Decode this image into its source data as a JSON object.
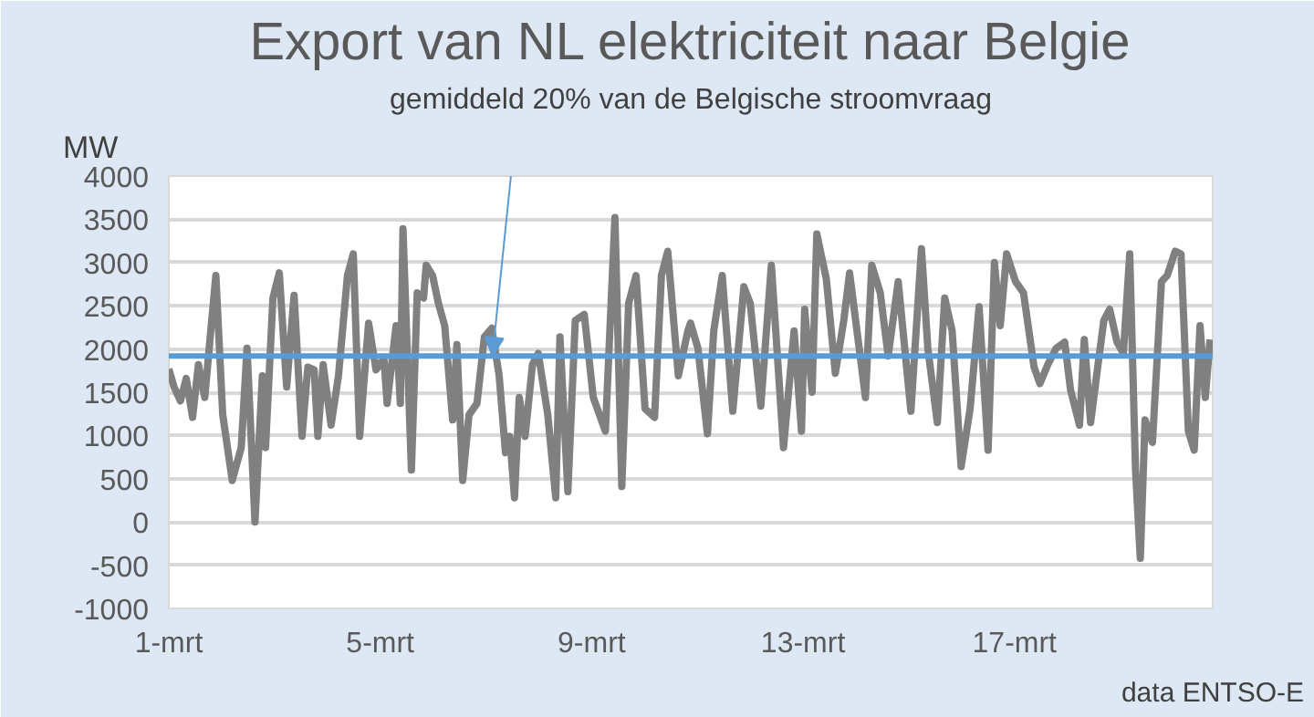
{
  "chart_data": {
    "type": "line",
    "title": "Export van NL elektriciteit naar Belgie",
    "ylabel": "MW",
    "annotations": [
      "gemiddeld 20% van de Belgische stroomvraag",
      "data ENTSO-E"
    ],
    "x": [
      1.0,
      1.1,
      1.22,
      1.33,
      1.45,
      1.56,
      1.68,
      1.77,
      1.89,
      2.02,
      2.2,
      2.37,
      2.48,
      2.63,
      2.77,
      2.83,
      2.97,
      3.09,
      3.23,
      3.37,
      3.52,
      3.63,
      3.75,
      3.82,
      3.92,
      4.07,
      4.21,
      4.38,
      4.49,
      4.61,
      4.78,
      4.92,
      5.07,
      5.13,
      5.3,
      5.38,
      5.43,
      5.59,
      5.7,
      5.82,
      5.87,
      5.99,
      6.1,
      6.22,
      6.37,
      6.45,
      6.56,
      6.68,
      6.83,
      6.97,
      7.11,
      7.25,
      7.37,
      7.45,
      7.54,
      7.63,
      7.74,
      7.88,
      7.99,
      8.17,
      8.32,
      8.4,
      8.55,
      8.69,
      8.86,
      9.03,
      9.26,
      9.44,
      9.57,
      9.7,
      9.84,
      10.01,
      10.19,
      10.32,
      10.44,
      10.64,
      10.82,
      10.87,
      11.01,
      11.19,
      11.31,
      11.47,
      11.67,
      11.88,
      12.0,
      12.2,
      12.4,
      12.63,
      12.83,
      12.97,
      13.03,
      13.17,
      13.26,
      13.44,
      13.61,
      13.77,
      13.88,
      14.18,
      14.3,
      14.46,
      14.61,
      14.8,
      15.04,
      15.24,
      15.36,
      15.54,
      15.68,
      15.82,
      15.99,
      16.16,
      16.33,
      16.5,
      16.62,
      16.73,
      16.85,
      17.02,
      17.17,
      17.37,
      17.48,
      17.63,
      17.79,
      17.95,
      18.06,
      18.23,
      18.32,
      18.44,
      18.58,
      18.69,
      18.8,
      18.94,
      19.06,
      19.18,
      19.29,
      19.38,
      19.47,
      19.61,
      19.78,
      19.89,
      20.04,
      20.15,
      20.29,
      20.4,
      20.51,
      20.61,
      20.7
    ],
    "series": [
      {
        "color": "#808080",
        "values": [
          1770,
          1560,
          1400,
          1660,
          1210,
          1820,
          1440,
          2050,
          2850,
          1240,
          480,
          860,
          2010,
          0,
          1690,
          860,
          2590,
          2880,
          1560,
          2620,
          990,
          1790,
          1760,
          990,
          1820,
          1120,
          1690,
          2850,
          3100,
          990,
          2300,
          1760,
          1890,
          1370,
          2270,
          1370,
          3390,
          600,
          2650,
          2590,
          2970,
          2850,
          2530,
          2270,
          1180,
          2050,
          480,
          1240,
          1370,
          2140,
          2240,
          1690,
          800,
          990,
          280,
          1440,
          990,
          1820,
          1950,
          1240,
          280,
          2140,
          350,
          2330,
          2400,
          1440,
          1050,
          3520,
          410,
          2530,
          2850,
          1310,
          1210,
          2850,
          3130,
          1690,
          2210,
          2300,
          2010,
          1020,
          2210,
          2850,
          1280,
          2720,
          2530,
          1340,
          2970,
          860,
          2210,
          1050,
          2460,
          1500,
          3330,
          2810,
          1720,
          2330,
          2880,
          1440,
          2970,
          2650,
          1920,
          2780,
          1280,
          3160,
          2010,
          1150,
          2590,
          2210,
          640,
          1310,
          2490,
          830,
          3000,
          2270,
          3100,
          2780,
          2650,
          1790,
          1600,
          1820,
          2010,
          2080,
          1530,
          1120,
          2110,
          1150,
          1820,
          2330,
          2460,
          2080,
          1950,
          3100,
          600,
          -420,
          1180,
          920,
          2780,
          2850,
          3130,
          3100,
          1050,
          830,
          2270,
          1440,
          2110
        ]
      }
    ],
    "xlim": [
      1,
      20.75
    ],
    "xticks": [
      {
        "value": 1,
        "label": "1-mrt"
      },
      {
        "value": 5,
        "label": "5-mrt"
      },
      {
        "value": 9,
        "label": "9-mrt"
      },
      {
        "value": 13,
        "label": "13-mrt"
      },
      {
        "value": 17,
        "label": "17-mrt"
      }
    ],
    "ylim": [
      -1000,
      4000
    ],
    "yticks": [
      -1000,
      -500,
      0,
      500,
      1000,
      1500,
      2000,
      2500,
      3000,
      3500,
      4000
    ],
    "ref_lines": [
      {
        "axis": "y",
        "value": 1920,
        "label": null,
        "color": "#5b9bd5"
      }
    ],
    "grid": "y"
  }
}
